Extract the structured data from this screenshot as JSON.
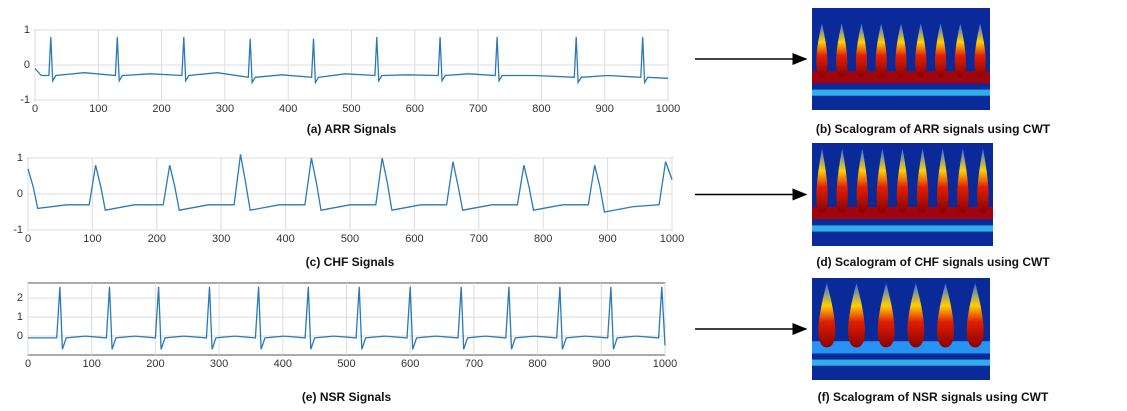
{
  "chart_data": [
    {
      "type": "line",
      "caption": "(a) ARR Signals",
      "color": "#2a7ab8",
      "grid": true,
      "xlim": [
        0,
        1000
      ],
      "xticks": [
        0,
        100,
        200,
        300,
        400,
        500,
        600,
        700,
        800,
        900,
        1000
      ],
      "ylim": [
        -1,
        1
      ],
      "yticks": [
        -1,
        0,
        1
      ],
      "x": [
        0,
        10,
        22,
        25,
        28,
        33,
        78,
        127,
        130,
        133,
        138,
        183,
        232,
        235,
        238,
        243,
        288,
        337,
        340,
        343,
        348,
        390,
        437,
        440,
        443,
        448,
        490,
        537,
        540,
        543,
        548,
        590,
        637,
        640,
        643,
        648,
        685,
        727,
        730,
        733,
        738,
        790,
        852,
        855,
        858,
        863,
        905,
        957,
        960,
        963,
        968,
        1000
      ],
      "values": [
        -0.1,
        -0.3,
        -0.3,
        0.8,
        -0.45,
        -0.3,
        -0.22,
        -0.3,
        0.8,
        -0.45,
        -0.3,
        -0.25,
        -0.3,
        0.8,
        -0.45,
        -0.3,
        -0.22,
        -0.35,
        0.75,
        -0.5,
        -0.35,
        -0.28,
        -0.35,
        0.75,
        -0.5,
        -0.35,
        -0.25,
        -0.3,
        0.8,
        -0.45,
        -0.3,
        -0.28,
        -0.3,
        0.8,
        -0.45,
        -0.3,
        -0.25,
        -0.3,
        0.8,
        -0.45,
        -0.3,
        -0.3,
        -0.35,
        0.8,
        -0.5,
        -0.35,
        -0.3,
        -0.35,
        0.8,
        -0.5,
        -0.35,
        -0.38
      ]
    },
    {
      "type": "line",
      "caption": "(c) CHF Signals",
      "color": "#2a7ab8",
      "grid": true,
      "xlim": [
        0,
        1000
      ],
      "xticks": [
        0,
        100,
        200,
        300,
        400,
        500,
        600,
        700,
        800,
        900,
        1000
      ],
      "ylim": [
        -1,
        1
      ],
      "yticks": [
        -1,
        0,
        1
      ],
      "x": [
        0,
        8,
        15,
        60,
        95,
        105,
        113,
        120,
        165,
        210,
        220,
        228,
        235,
        280,
        320,
        330,
        338,
        345,
        390,
        430,
        440,
        448,
        455,
        500,
        540,
        550,
        558,
        565,
        610,
        650,
        660,
        668,
        675,
        720,
        760,
        770,
        778,
        785,
        830,
        870,
        880,
        888,
        895,
        940,
        980,
        990,
        1000
      ],
      "values": [
        0.7,
        0.2,
        -0.4,
        -0.3,
        -0.3,
        0.8,
        0.2,
        -0.45,
        -0.3,
        -0.3,
        0.8,
        0.2,
        -0.45,
        -0.3,
        -0.3,
        1.1,
        0.3,
        -0.45,
        -0.3,
        -0.3,
        1.0,
        0.3,
        -0.45,
        -0.3,
        -0.3,
        1.0,
        0.3,
        -0.45,
        -0.3,
        -0.3,
        0.9,
        0.2,
        -0.45,
        -0.3,
        -0.3,
        0.8,
        0.2,
        -0.45,
        -0.3,
        -0.3,
        0.8,
        0.2,
        -0.5,
        -0.35,
        -0.3,
        0.9,
        0.4
      ]
    },
    {
      "type": "line",
      "caption": "(e) NSR Signals",
      "color": "#2a7ab8",
      "grid": true,
      "xlim": [
        0,
        1000
      ],
      "xticks": [
        0,
        100,
        200,
        300,
        400,
        500,
        600,
        700,
        800,
        900,
        1000
      ],
      "ylim": [
        -1,
        2.8
      ],
      "yticks": [
        0,
        1,
        2
      ],
      "x": [
        0,
        45,
        50,
        54,
        60,
        90,
        123,
        128,
        132,
        138,
        168,
        200,
        205,
        209,
        215,
        245,
        280,
        285,
        289,
        295,
        325,
        357,
        362,
        366,
        372,
        402,
        435,
        440,
        444,
        450,
        480,
        515,
        520,
        524,
        530,
        560,
        595,
        600,
        604,
        610,
        640,
        675,
        680,
        684,
        690,
        718,
        750,
        755,
        759,
        765,
        795,
        830,
        835,
        839,
        845,
        875,
        910,
        915,
        919,
        925,
        955,
        990,
        995,
        1000
      ],
      "values": [
        -0.1,
        -0.1,
        2.6,
        -0.7,
        -0.1,
        0,
        -0.1,
        2.6,
        -0.7,
        -0.1,
        0,
        -0.1,
        2.6,
        -0.7,
        -0.1,
        0,
        -0.1,
        2.6,
        -0.7,
        -0.1,
        0,
        -0.1,
        2.6,
        -0.7,
        -0.1,
        0,
        -0.1,
        2.6,
        -0.7,
        -0.1,
        0,
        -0.1,
        2.6,
        -0.7,
        -0.1,
        0,
        -0.1,
        2.6,
        -0.7,
        -0.1,
        0,
        -0.1,
        2.6,
        -0.7,
        -0.1,
        0,
        -0.1,
        2.6,
        -0.7,
        -0.1,
        0,
        -0.1,
        2.6,
        -0.7,
        -0.1,
        0,
        -0.1,
        2.6,
        -0.7,
        -0.1,
        0,
        -0.1,
        2.6,
        -0.5
      ]
    }
  ],
  "scalograms": [
    {
      "caption": "(b) Scalogram of ARR signals using CWT"
    },
    {
      "caption": "(d) Scalogram of CHF signals using CWT"
    },
    {
      "caption": "(f) Scalogram of NSR signals using CWT"
    }
  ]
}
